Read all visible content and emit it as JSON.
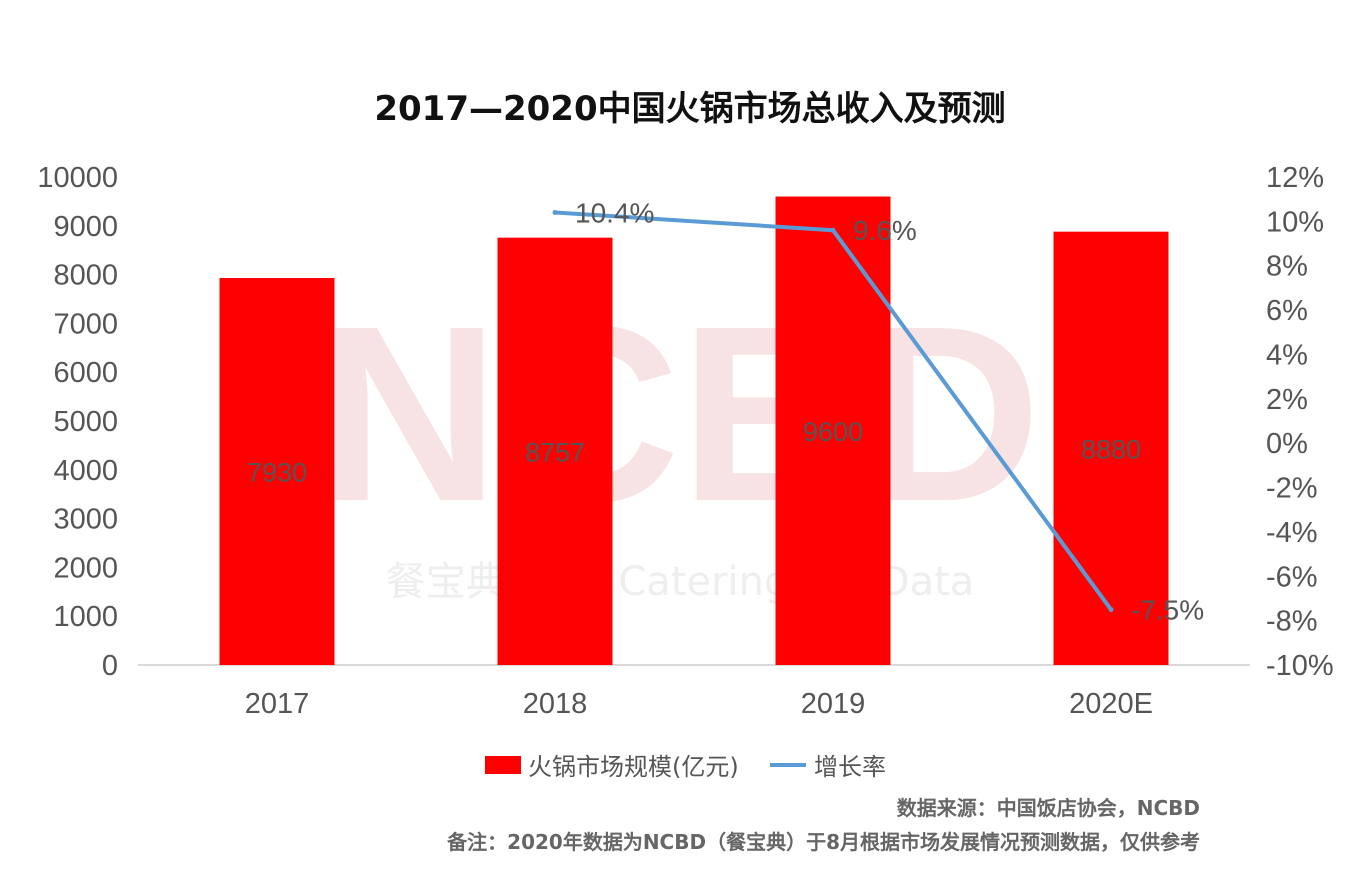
{
  "chart_data": {
    "type": "bar",
    "title": "2017—2020中国火锅市场总收入及预测",
    "categories": [
      "2017",
      "2018",
      "2019",
      "2020E"
    ],
    "series": [
      {
        "name": "火锅市场规模(亿元)",
        "type": "bar",
        "axis": "left",
        "values": [
          7930,
          8757,
          9600,
          8880
        ],
        "labels": [
          "7930",
          "8757",
          "9600",
          "8880"
        ],
        "color": "#ff0000"
      },
      {
        "name": "增长率",
        "type": "line",
        "axis": "right",
        "points": [
          {
            "category": "2018",
            "value": 10.4,
            "label": "10.4%"
          },
          {
            "category": "2019",
            "value": 9.6,
            "label": "9.6%"
          },
          {
            "category": "2020E",
            "value": -7.5,
            "label": "-7.5%"
          }
        ],
        "color": "#5b9bd5"
      }
    ],
    "y_left": {
      "ylim": [
        0,
        10000
      ],
      "ticks": [
        "0",
        "1000",
        "2000",
        "3000",
        "4000",
        "5000",
        "6000",
        "7000",
        "8000",
        "9000",
        "10000"
      ]
    },
    "y_right": {
      "ylim": [
        -10,
        12
      ],
      "ticks": [
        "-10%",
        "-8%",
        "-6%",
        "-4%",
        "-2%",
        "0%",
        "2%",
        "4%",
        "6%",
        "8%",
        "10%",
        "12%"
      ]
    },
    "legend": "bottom",
    "grid": false
  },
  "watermark": {
    "main": "NCBD",
    "sub": "餐宝典 New Catering Big Data"
  },
  "footer": {
    "source": "数据来源：中国饭店协会，NCBD",
    "note": "备注：2020年数据为NCBD（餐宝典）于8月根据市场发展情况预测数据，仅供参考"
  }
}
